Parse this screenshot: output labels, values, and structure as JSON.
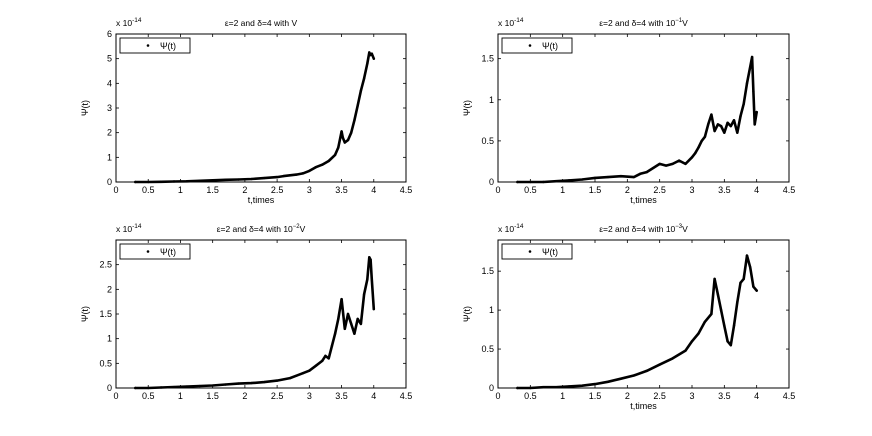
{
  "chart_data": [
    {
      "type": "scatter",
      "title": "ε=2 and δ=4 with V",
      "xlabel": "t,times",
      "ylabel": "Ψ(t)",
      "xlim": [
        0,
        4.5
      ],
      "ylim": [
        0,
        6
      ],
      "x_ticks": [
        0,
        0.5,
        1,
        1.5,
        2,
        2.5,
        3,
        3.5,
        4,
        4.5
      ],
      "y_ticks": [
        0,
        1,
        2,
        3,
        4,
        5,
        6
      ],
      "y_multiplier": "x 10",
      "y_multiplier_exponent": "-14",
      "legend": {
        "label": "Ψ(t)",
        "position": "top-left"
      },
      "series": [
        {
          "name": "Ψ(t)",
          "x": [
            0.3,
            0.5,
            0.7,
            0.9,
            1.1,
            1.3,
            1.5,
            1.7,
            1.9,
            2.1,
            2.3,
            2.5,
            2.6,
            2.7,
            2.8,
            2.9,
            3.0,
            3.1,
            3.2,
            3.3,
            3.4,
            3.45,
            3.5,
            3.52,
            3.55,
            3.6,
            3.65,
            3.7,
            3.75,
            3.8,
            3.85,
            3.9,
            3.93,
            3.95,
            3.97,
            4.0
          ],
          "y": [
            0.0,
            0.0,
            0.01,
            0.02,
            0.03,
            0.05,
            0.07,
            0.09,
            0.1,
            0.12,
            0.16,
            0.2,
            0.24,
            0.27,
            0.3,
            0.35,
            0.45,
            0.6,
            0.7,
            0.85,
            1.1,
            1.4,
            2.05,
            1.8,
            1.6,
            1.7,
            2.0,
            2.5,
            3.1,
            3.7,
            4.2,
            4.8,
            5.25,
            5.15,
            5.2,
            5.0
          ]
        }
      ]
    },
    {
      "type": "scatter",
      "title": "ε=2 and δ=4 with 10",
      "title_sup": "−1",
      "title_tail": "V",
      "xlabel": "t,times",
      "ylabel": "Ψ(t)",
      "xlim": [
        0,
        4.5
      ],
      "ylim": [
        0,
        1.8
      ],
      "x_ticks": [
        0,
        0.5,
        1,
        1.5,
        2,
        2.5,
        3,
        3.5,
        4,
        4.5
      ],
      "y_ticks": [
        0,
        0.5,
        1,
        1.5
      ],
      "y_multiplier": "x 10",
      "y_multiplier_exponent": "-14",
      "legend": {
        "label": "Ψ(t)",
        "position": "top-left"
      },
      "series": [
        {
          "name": "Ψ(t)",
          "x": [
            0.3,
            0.5,
            0.7,
            0.9,
            1.1,
            1.3,
            1.5,
            1.7,
            1.9,
            2.1,
            2.2,
            2.3,
            2.4,
            2.5,
            2.6,
            2.7,
            2.8,
            2.9,
            3.0,
            3.05,
            3.1,
            3.15,
            3.2,
            3.25,
            3.3,
            3.35,
            3.4,
            3.45,
            3.5,
            3.55,
            3.6,
            3.65,
            3.7,
            3.75,
            3.8,
            3.85,
            3.9,
            3.93,
            3.95,
            3.97,
            4.0
          ],
          "y": [
            0.0,
            0.0,
            0.0,
            0.01,
            0.02,
            0.03,
            0.05,
            0.06,
            0.07,
            0.06,
            0.1,
            0.12,
            0.17,
            0.22,
            0.2,
            0.22,
            0.26,
            0.22,
            0.3,
            0.35,
            0.42,
            0.5,
            0.55,
            0.7,
            0.82,
            0.62,
            0.7,
            0.68,
            0.6,
            0.72,
            0.68,
            0.75,
            0.6,
            0.8,
            0.95,
            1.2,
            1.4,
            1.52,
            1.1,
            0.7,
            0.85
          ]
        }
      ]
    },
    {
      "type": "scatter",
      "title": "ε=2 and δ=4 with 10",
      "title_sup": "−2",
      "title_tail": "V",
      "xlabel": "",
      "ylabel": "Ψ(t)",
      "xlim": [
        0,
        4.5
      ],
      "ylim": [
        0,
        3
      ],
      "x_ticks": [
        0,
        0.5,
        1,
        1.5,
        2,
        2.5,
        3,
        3.5,
        4,
        4.5
      ],
      "y_ticks": [
        0,
        0.5,
        1,
        1.5,
        2,
        2.5
      ],
      "y_multiplier": "x 10",
      "y_multiplier_exponent": "-14",
      "legend": {
        "label": "Ψ(t)",
        "position": "top-left"
      },
      "series": [
        {
          "name": "Ψ(t)",
          "x": [
            0.3,
            0.5,
            0.7,
            0.9,
            1.1,
            1.3,
            1.5,
            1.7,
            1.9,
            2.1,
            2.3,
            2.5,
            2.7,
            2.8,
            2.9,
            3.0,
            3.1,
            3.2,
            3.25,
            3.3,
            3.35,
            3.4,
            3.45,
            3.5,
            3.55,
            3.6,
            3.65,
            3.7,
            3.75,
            3.8,
            3.85,
            3.9,
            3.93,
            3.95,
            3.97,
            4.0
          ],
          "y": [
            0.0,
            0.0,
            0.01,
            0.02,
            0.03,
            0.04,
            0.05,
            0.07,
            0.09,
            0.1,
            0.12,
            0.15,
            0.2,
            0.25,
            0.3,
            0.35,
            0.45,
            0.55,
            0.65,
            0.6,
            0.85,
            1.1,
            1.4,
            1.8,
            1.2,
            1.5,
            1.3,
            1.1,
            1.4,
            1.3,
            1.9,
            2.2,
            2.65,
            2.6,
            2.2,
            1.6
          ]
        }
      ]
    },
    {
      "type": "scatter",
      "title": "ε=2 and δ=4 with 10",
      "title_sup": "−3",
      "title_tail": "V",
      "xlabel": "t,times",
      "ylabel": "Ψ(t)",
      "xlim": [
        0,
        4.5
      ],
      "ylim": [
        0,
        1.9
      ],
      "x_ticks": [
        0,
        0.5,
        1,
        1.5,
        2,
        2.5,
        3,
        3.5,
        4,
        4.5
      ],
      "y_ticks": [
        0,
        0.5,
        1,
        1.5
      ],
      "y_multiplier": "x 10",
      "y_multiplier_exponent": "-14",
      "legend": {
        "label": "Ψ(t)",
        "position": "top-left"
      },
      "series": [
        {
          "name": "Ψ(t)",
          "x": [
            0.3,
            0.5,
            0.7,
            0.9,
            1.1,
            1.3,
            1.5,
            1.7,
            1.9,
            2.1,
            2.3,
            2.5,
            2.7,
            2.9,
            3.0,
            3.1,
            3.2,
            3.3,
            3.35,
            3.4,
            3.45,
            3.5,
            3.55,
            3.6,
            3.65,
            3.7,
            3.75,
            3.8,
            3.85,
            3.9,
            3.95,
            4.0
          ],
          "y": [
            0.0,
            0.0,
            0.01,
            0.01,
            0.02,
            0.03,
            0.05,
            0.08,
            0.12,
            0.16,
            0.22,
            0.3,
            0.38,
            0.48,
            0.6,
            0.7,
            0.85,
            0.95,
            1.4,
            1.2,
            1.0,
            0.8,
            0.6,
            0.55,
            0.8,
            1.1,
            1.35,
            1.4,
            1.7,
            1.55,
            1.3,
            1.25
          ]
        }
      ]
    }
  ]
}
